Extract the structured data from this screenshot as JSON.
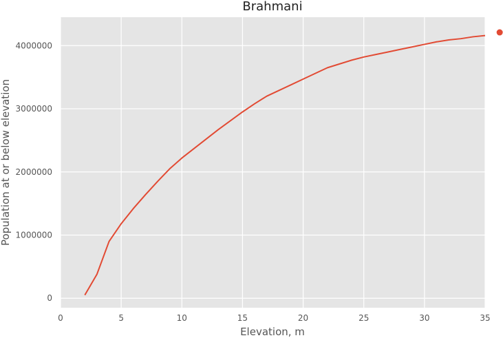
{
  "chart_data": {
    "type": "line",
    "title": "Brahmani",
    "xlabel": "Elevation, m",
    "ylabel": "Population at or below elevation",
    "xlim": [
      0,
      35
    ],
    "ylim": [
      -150000,
      4450000
    ],
    "x_ticks": [
      0,
      5,
      10,
      15,
      20,
      25,
      30,
      35
    ],
    "y_ticks": [
      0,
      1000000,
      2000000,
      3000000,
      4000000
    ],
    "grid": true,
    "background": "#e5e5e5",
    "series": [
      {
        "color": "#e24a33",
        "x": [
          2,
          3,
          4,
          5,
          6,
          7,
          8,
          9,
          10,
          11,
          12,
          13,
          14,
          15,
          16,
          17,
          18,
          19,
          20,
          21,
          22,
          23,
          24,
          25,
          26,
          27,
          28,
          29,
          30,
          31,
          32,
          33,
          34,
          35
        ],
        "y": [
          50000,
          380000,
          900000,
          1180000,
          1420000,
          1640000,
          1850000,
          2050000,
          2220000,
          2370000,
          2520000,
          2670000,
          2810000,
          2950000,
          3080000,
          3200000,
          3290000,
          3380000,
          3470000,
          3560000,
          3650000,
          3710000,
          3770000,
          3820000,
          3860000,
          3900000,
          3940000,
          3980000,
          4020000,
          4060000,
          4090000,
          4110000,
          4140000,
          4160000
        ]
      }
    ],
    "marker_point": {
      "color": "#e24a33",
      "x": 36.2,
      "y": 4210000
    }
  }
}
